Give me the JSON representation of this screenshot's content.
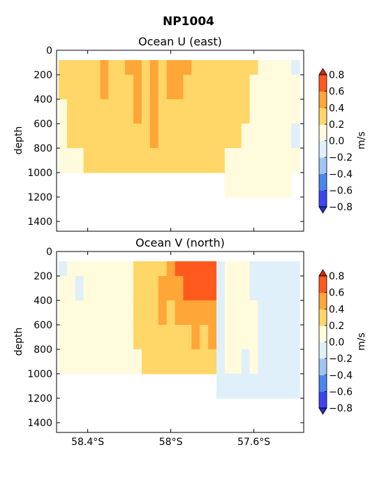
{
  "figure": {
    "suptitle": "NP1004"
  },
  "colors": {
    "levels": [
      -0.8,
      -0.6,
      -0.4,
      -0.2,
      0.0,
      0.2,
      0.4,
      0.6,
      0.8
    ],
    "fills": [
      "#3d46ee",
      "#4a86f0",
      "#a0c4f3",
      "#dff0fa",
      "#fffbdc",
      "#ffd668",
      "#ffa638",
      "#ff5a1e"
    ],
    "under": "#2a2acc",
    "over": "#cc2a0e"
  },
  "chart_data": [
    {
      "type": "heatmap",
      "title": "Ocean U (east)",
      "ylabel": "depth",
      "xlabel": "",
      "xlim": [
        58.55,
        57.36
      ],
      "ylim": [
        1480,
        0
      ],
      "yticks": [
        0,
        200,
        400,
        600,
        800,
        1000,
        1200,
        1400
      ],
      "xticks": [
        58.4,
        58.0,
        57.6
      ],
      "xtick_labels": [],
      "colorbar": {
        "label": "m/s",
        "ticks": [
          "0.8",
          "0.6",
          "0.4",
          "0.2",
          "0.0",
          "−0.2",
          "−0.4",
          "−0.6",
          "−0.8"
        ]
      },
      "x": [
        58.52,
        58.48,
        58.44,
        58.4,
        58.36,
        58.32,
        58.28,
        58.24,
        58.2,
        58.16,
        58.12,
        58.08,
        58.04,
        58.0,
        57.96,
        57.92,
        57.88,
        57.84,
        57.8,
        57.76,
        57.72,
        57.68,
        57.64,
        57.6,
        57.56,
        57.52,
        57.48,
        57.44,
        57.4
      ],
      "depth_bins": [
        100,
        300,
        500,
        700,
        900,
        1100
      ],
      "values": [
        [
          0.25,
          0.25,
          0.2,
          0.2,
          0.1,
          null
        ],
        [
          0.3,
          0.3,
          0.25,
          0.25,
          0.2,
          null
        ],
        [
          0.3,
          0.3,
          0.3,
          0.25,
          0.2,
          null
        ],
        [
          0.3,
          0.3,
          0.3,
          0.25,
          0.25,
          null
        ],
        [
          0.3,
          0.3,
          0.3,
          0.3,
          0.25,
          null
        ],
        [
          0.45,
          0.45,
          0.3,
          0.3,
          0.25,
          null
        ],
        [
          0.3,
          0.3,
          0.3,
          0.3,
          0.3,
          null
        ],
        [
          0.3,
          0.3,
          0.3,
          0.3,
          0.3,
          null
        ],
        [
          0.45,
          0.3,
          0.3,
          0.3,
          0.3,
          null
        ],
        [
          0.45,
          0.45,
          0.45,
          0.3,
          0.3,
          null
        ],
        [
          0.3,
          0.3,
          0.3,
          0.3,
          0.3,
          null
        ],
        [
          0.45,
          0.45,
          0.45,
          0.45,
          0.3,
          null
        ],
        [
          0.3,
          0.3,
          0.3,
          0.3,
          0.3,
          null
        ],
        [
          0.45,
          0.45,
          0.3,
          0.3,
          0.3,
          null
        ],
        [
          0.45,
          0.45,
          0.3,
          0.3,
          0.3,
          null
        ],
        [
          0.45,
          0.3,
          0.3,
          0.3,
          0.3,
          null
        ],
        [
          0.3,
          0.3,
          0.3,
          0.3,
          0.3,
          null
        ],
        [
          0.3,
          0.3,
          0.3,
          0.3,
          0.3,
          null
        ],
        [
          0.3,
          0.3,
          0.3,
          0.3,
          0.25,
          null
        ],
        [
          0.3,
          0.3,
          0.3,
          0.3,
          0.25,
          null
        ],
        [
          0.3,
          0.3,
          0.25,
          0.25,
          0.1,
          0.05
        ],
        [
          0.3,
          0.3,
          0.3,
          0.25,
          0.1,
          0.05
        ],
        [
          0.25,
          0.25,
          0.25,
          0.1,
          0.1,
          0.05
        ],
        [
          0.25,
          0.1,
          0.1,
          0.1,
          0.05,
          0.05
        ],
        [
          0.1,
          0.1,
          0.1,
          0.1,
          0.05,
          0.05
        ],
        [
          0.1,
          0.1,
          0.1,
          0.1,
          0.05,
          0.05
        ],
        [
          0.1,
          0.1,
          0.05,
          0.05,
          0.05,
          0.05
        ],
        [
          0.05,
          0.05,
          0.05,
          0.05,
          0.05,
          0.05
        ],
        [
          -0.05,
          0.05,
          0.05,
          -0.05,
          0.05,
          null
        ]
      ]
    },
    {
      "type": "heatmap",
      "title": "Ocean V (north)",
      "ylabel": "depth",
      "xlabel": "",
      "xlim": [
        58.55,
        57.36
      ],
      "ylim": [
        1480,
        0
      ],
      "yticks": [
        0,
        200,
        400,
        600,
        800,
        1000,
        1200,
        1400
      ],
      "xticks": [
        58.4,
        58.0,
        57.6
      ],
      "xtick_labels": [
        "58.4°S",
        "58°S",
        "57.6°S"
      ],
      "colorbar": {
        "label": "m/s",
        "ticks": [
          "0.8",
          "0.6",
          "0.4",
          "0.2",
          "0.0",
          "−0.2",
          "−0.4",
          "−0.6",
          "−0.8"
        ]
      },
      "x": [
        58.52,
        58.48,
        58.44,
        58.4,
        58.36,
        58.32,
        58.28,
        58.24,
        58.2,
        58.16,
        58.12,
        58.08,
        58.04,
        58.0,
        57.96,
        57.92,
        57.88,
        57.84,
        57.8,
        57.76,
        57.72,
        57.68,
        57.64,
        57.6,
        57.56,
        57.52,
        57.48,
        57.44,
        57.4
      ],
      "depth_bins": [
        100,
        300,
        500,
        700,
        900,
        1100
      ],
      "values": [
        [
          -0.05,
          0.05,
          0.05,
          0.05,
          0.05,
          null
        ],
        [
          0.05,
          0.05,
          0.05,
          0.05,
          0.05,
          null
        ],
        [
          0.05,
          -0.05,
          0.05,
          0.05,
          0.05,
          null
        ],
        [
          0.05,
          0.05,
          0.05,
          0.05,
          0.05,
          null
        ],
        [
          0.05,
          0.05,
          0.05,
          0.05,
          0.05,
          null
        ],
        [
          0.05,
          0.05,
          0.05,
          0.05,
          0.05,
          null
        ],
        [
          0.05,
          0.05,
          0.05,
          0.05,
          0.05,
          null
        ],
        [
          0.05,
          0.05,
          0.05,
          0.05,
          0.05,
          null
        ],
        [
          0.05,
          0.05,
          0.05,
          0.05,
          0.05,
          null
        ],
        [
          0.25,
          0.25,
          0.25,
          0.25,
          0.05,
          null
        ],
        [
          0.25,
          0.25,
          0.25,
          0.25,
          0.25,
          null
        ],
        [
          0.25,
          0.3,
          0.3,
          0.25,
          0.25,
          null
        ],
        [
          0.3,
          0.45,
          0.45,
          0.3,
          0.3,
          null
        ],
        [
          0.45,
          0.45,
          0.3,
          0.3,
          0.3,
          null
        ],
        [
          0.65,
          0.45,
          0.45,
          0.3,
          0.3,
          null
        ],
        [
          0.65,
          0.65,
          0.45,
          0.3,
          0.3,
          null
        ],
        [
          0.65,
          0.65,
          0.45,
          0.45,
          0.3,
          null
        ],
        [
          0.65,
          0.65,
          0.45,
          0.3,
          0.3,
          null
        ],
        [
          0.65,
          0.65,
          0.45,
          0.45,
          0.3,
          null
        ],
        [
          -0.05,
          -0.05,
          -0.05,
          -0.05,
          -0.05,
          -0.05
        ],
        [
          0.05,
          0.05,
          0.05,
          0.05,
          0.05,
          -0.05
        ],
        [
          0.05,
          0.05,
          0.05,
          0.05,
          0.05,
          -0.05
        ],
        [
          0.05,
          0.05,
          0.05,
          0.05,
          -0.05,
          -0.05
        ],
        [
          -0.05,
          -0.05,
          0.05,
          0.05,
          0.05,
          -0.05
        ],
        [
          -0.05,
          -0.05,
          -0.05,
          -0.05,
          -0.05,
          -0.05
        ],
        [
          -0.05,
          -0.05,
          -0.05,
          -0.05,
          -0.05,
          -0.05
        ],
        [
          -0.05,
          -0.05,
          -0.05,
          -0.05,
          -0.05,
          -0.05
        ],
        [
          -0.05,
          -0.05,
          -0.05,
          -0.05,
          -0.05,
          -0.05
        ],
        [
          -0.05,
          -0.05,
          -0.05,
          -0.05,
          -0.05,
          -0.05
        ]
      ]
    }
  ]
}
